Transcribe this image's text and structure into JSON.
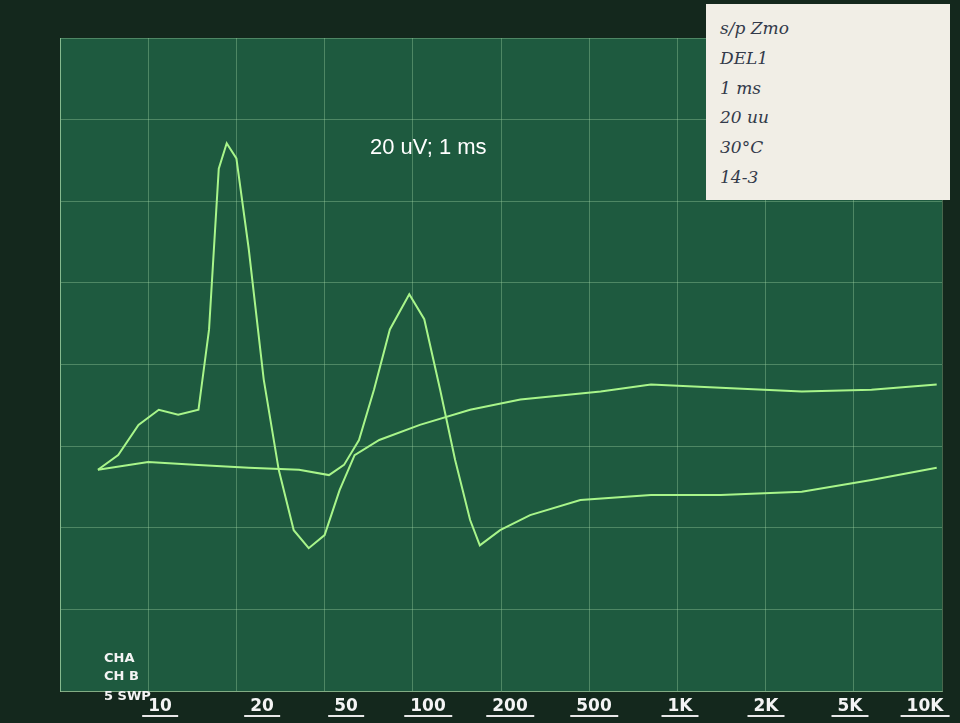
{
  "chart_data": {
    "type": "line",
    "annotation": "20 uV; 1 ms",
    "note_card": [
      "s/p Zmo",
      "DEL1",
      "1 ms",
      "20 uu",
      "30°C",
      "14-3"
    ],
    "side_labels": [
      "CHA",
      "CH B",
      "5 SWP"
    ],
    "scale_buttons": [
      "10",
      "20",
      "50",
      "100",
      "200",
      "500",
      "1K",
      "2K",
      "5K",
      "10K"
    ],
    "xlim": [
      0,
      10
    ],
    "xticks": [
      0,
      1,
      2,
      3,
      4,
      5,
      6,
      7,
      8,
      9,
      10
    ],
    "ylim": [
      -80,
      80
    ],
    "yticks": [
      -80,
      -60,
      -40,
      -20,
      0,
      20,
      40,
      60,
      80
    ],
    "grid": true,
    "tick_labels": false,
    "series": [
      {
        "color": "#a8f58a",
        "marker": "none",
        "line_style": "solid",
        "x": [
          0.43,
          0.66,
          0.89,
          1.12,
          1.34,
          1.57,
          1.69,
          1.8,
          1.89,
          2.0,
          2.14,
          2.31,
          2.48,
          2.65,
          2.82,
          3.0,
          3.17,
          3.34,
          3.62,
          4.08,
          4.65,
          5.22,
          6.13,
          6.7,
          7.49,
          8.41,
          9.2,
          9.94
        ],
        "values": [
          -25.8,
          -22.2,
          -14.8,
          -11.1,
          -12.3,
          -11.1,
          8.6,
          48.0,
          54.2,
          50.5,
          28.3,
          -3.7,
          -25.8,
          -40.6,
          -45.0,
          -41.8,
          -30.8,
          -22.2,
          -18.5,
          -14.8,
          -11.1,
          -8.6,
          -6.6,
          -4.9,
          -5.7,
          -6.6,
          -6.2,
          -4.9
        ]
      },
      {
        "color": "#a8f58a",
        "marker": "none",
        "line_style": "solid",
        "x": [
          0.43,
          1.0,
          1.57,
          2.14,
          2.71,
          3.05,
          3.22,
          3.39,
          3.56,
          3.74,
          3.96,
          4.13,
          4.31,
          4.48,
          4.65,
          4.76,
          4.99,
          5.33,
          5.9,
          6.7,
          7.49,
          8.41,
          9.2,
          9.94
        ],
        "values": [
          -25.8,
          -23.9,
          -24.6,
          -25.3,
          -25.8,
          -27.1,
          -24.6,
          -18.5,
          -6.2,
          8.6,
          17.2,
          11.1,
          -6.2,
          -23.4,
          -38.1,
          -44.3,
          -40.6,
          -36.9,
          -33.2,
          -32.0,
          -32.0,
          -31.2,
          -28.3,
          -25.3
        ]
      }
    ]
  }
}
